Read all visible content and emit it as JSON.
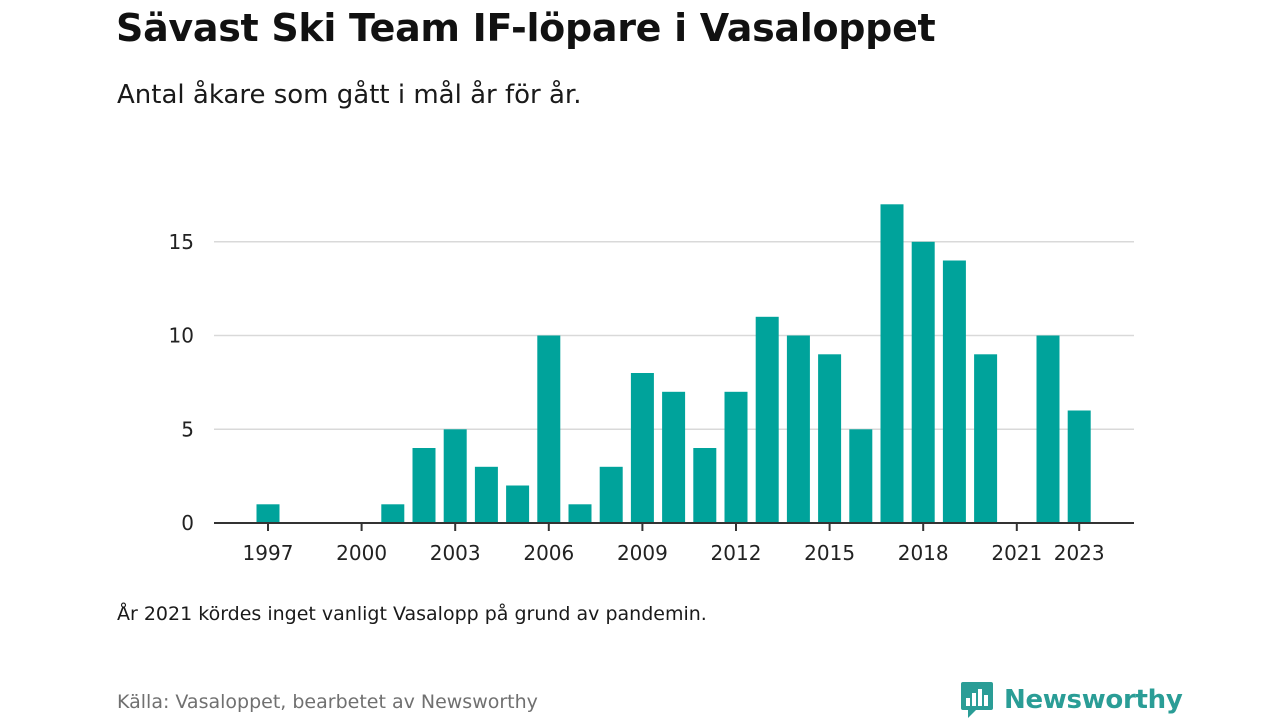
{
  "header": {
    "title": "Sävast Ski Team IF-löpare i Vasaloppet",
    "subtitle": "Antal åkare som gått i mål år för år."
  },
  "footer": {
    "note": "År 2021 kördes inget vanligt Vasalopp på grund av pandemin.",
    "source": "Källa: Vasaloppet, bearbetet av Newsworthy",
    "brand_name": "Newsworthy",
    "brand_icon": "bar-chart-speech-bubble-icon"
  },
  "colors": {
    "bar": "#00a39b",
    "brand": "#2a9d96",
    "gridline": "#d9d9d9",
    "axis": "#333333"
  },
  "chart_data": {
    "type": "bar",
    "title": "Sävast Ski Team IF-löpare i Vasaloppet",
    "subtitle": "Antal åkare som gått i mål år för år.",
    "xlabel": "",
    "ylabel": "",
    "categories": [
      1997,
      1998,
      1999,
      2000,
      2001,
      2002,
      2003,
      2004,
      2005,
      2006,
      2007,
      2008,
      2009,
      2010,
      2011,
      2012,
      2013,
      2014,
      2015,
      2016,
      2017,
      2018,
      2019,
      2020,
      2021,
      2022,
      2023
    ],
    "values": [
      1,
      0,
      0,
      0,
      1,
      4,
      5,
      3,
      2,
      10,
      1,
      3,
      8,
      7,
      4,
      7,
      11,
      10,
      9,
      5,
      17,
      15,
      14,
      9,
      0,
      10,
      6
    ],
    "x_tick_labels": [
      "1997",
      "2000",
      "2003",
      "2006",
      "2009",
      "2012",
      "2015",
      "2018",
      "2021",
      "2023"
    ],
    "y_ticks": [
      0,
      5,
      10,
      15
    ],
    "ylim": [
      0,
      17
    ],
    "grid": true,
    "legend": "none"
  }
}
